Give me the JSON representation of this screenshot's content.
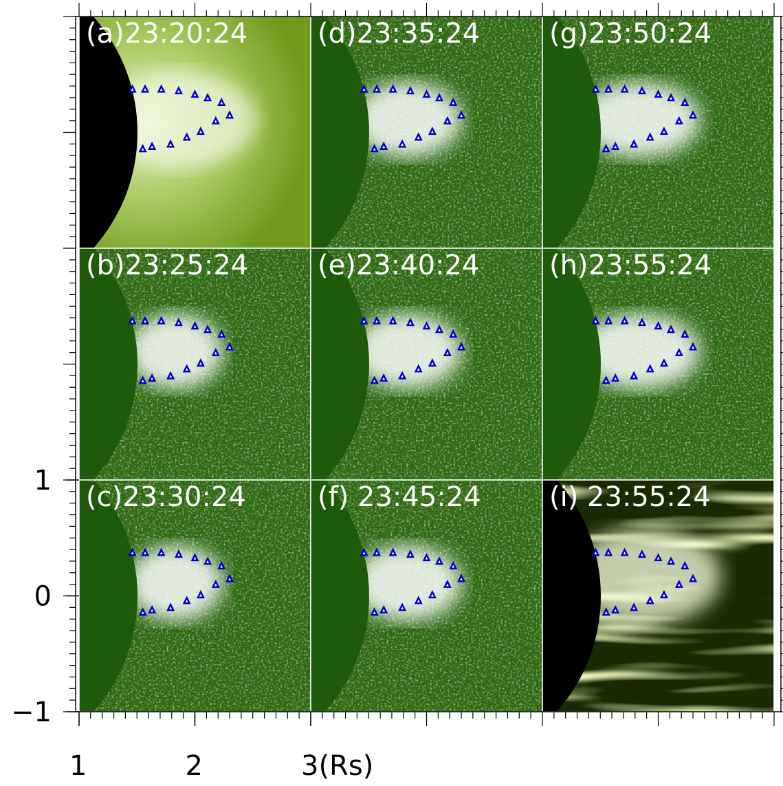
{
  "chart_data": [
    {
      "type": "scatter",
      "title": "(a)23:20:24",
      "style": "direct",
      "color": "#0000cc",
      "xlim": [
        1,
        3
      ],
      "ylim": [
        -1,
        1
      ],
      "x": [
        1.46,
        1.57,
        1.71,
        1.86,
        2.0,
        2.11,
        2.23,
        2.3,
        2.18,
        2.05,
        1.93,
        1.79,
        1.63,
        1.55
      ],
      "y": [
        0.375,
        0.375,
        0.375,
        0.36,
        0.33,
        0.3,
        0.26,
        0.15,
        0.1,
        0.01,
        -0.04,
        -0.1,
        -0.12,
        -0.14
      ]
    },
    {
      "type": "scatter",
      "title": "(b)23:25:24",
      "style": "difference",
      "color": "#0000cc",
      "xlim": [
        1,
        3
      ],
      "ylim": [
        -1,
        1
      ],
      "x": [
        1.46,
        1.57,
        1.71,
        1.86,
        2.0,
        2.11,
        2.23,
        2.3,
        2.18,
        2.05,
        1.93,
        1.79,
        1.63,
        1.55
      ],
      "y": [
        0.375,
        0.375,
        0.375,
        0.36,
        0.33,
        0.3,
        0.26,
        0.15,
        0.1,
        0.01,
        -0.04,
        -0.1,
        -0.12,
        -0.14
      ]
    },
    {
      "type": "scatter",
      "title": "(c)23:30:24",
      "style": "difference",
      "color": "#0000cc",
      "xlim": [
        1,
        3
      ],
      "ylim": [
        -1,
        1
      ],
      "xticks": [
        1,
        2,
        {
          "value": 3,
          "label": "3(Rs)"
        }
      ],
      "yticks": [
        {
          "value": -1,
          "label": "−1"
        },
        0,
        1
      ],
      "x": [
        1.46,
        1.57,
        1.71,
        1.86,
        2.0,
        2.11,
        2.23,
        2.3,
        2.18,
        2.05,
        1.93,
        1.79,
        1.63,
        1.55
      ],
      "y": [
        0.375,
        0.375,
        0.375,
        0.36,
        0.33,
        0.3,
        0.26,
        0.15,
        0.1,
        0.01,
        -0.04,
        -0.1,
        -0.12,
        -0.14
      ]
    },
    {
      "type": "scatter",
      "title": "(d)23:35:24",
      "style": "difference",
      "color": "#0000cc",
      "xlim": [
        1,
        3
      ],
      "ylim": [
        -1,
        1
      ],
      "x": [
        1.46,
        1.57,
        1.71,
        1.86,
        2.0,
        2.11,
        2.23,
        2.3,
        2.18,
        2.05,
        1.93,
        1.79,
        1.63,
        1.55
      ],
      "y": [
        0.375,
        0.375,
        0.375,
        0.36,
        0.33,
        0.3,
        0.26,
        0.15,
        0.1,
        0.01,
        -0.04,
        -0.1,
        -0.12,
        -0.14
      ]
    },
    {
      "type": "scatter",
      "title": "(e)23:40:24",
      "style": "difference",
      "color": "#0000cc",
      "xlim": [
        1,
        3
      ],
      "ylim": [
        -1,
        1
      ],
      "x": [
        1.46,
        1.57,
        1.71,
        1.86,
        2.0,
        2.11,
        2.23,
        2.3,
        2.18,
        2.05,
        1.93,
        1.79,
        1.63,
        1.55
      ],
      "y": [
        0.375,
        0.375,
        0.375,
        0.36,
        0.33,
        0.3,
        0.26,
        0.15,
        0.1,
        0.01,
        -0.04,
        -0.1,
        -0.12,
        -0.14
      ]
    },
    {
      "type": "scatter",
      "title": "(f) 23:45:24",
      "style": "difference",
      "color": "#0000cc",
      "xlim": [
        1,
        3
      ],
      "ylim": [
        -1,
        1
      ],
      "x": [
        1.46,
        1.57,
        1.71,
        1.86,
        2.0,
        2.11,
        2.23,
        2.3,
        2.18,
        2.05,
        1.93,
        1.79,
        1.63,
        1.55
      ],
      "y": [
        0.375,
        0.375,
        0.375,
        0.36,
        0.33,
        0.3,
        0.26,
        0.15,
        0.1,
        0.01,
        -0.04,
        -0.1,
        -0.12,
        -0.14
      ]
    },
    {
      "type": "scatter",
      "title": "(g)23:50:24",
      "style": "difference",
      "color": "#0000cc",
      "xlim": [
        1,
        3
      ],
      "ylim": [
        -1,
        1
      ],
      "x": [
        1.46,
        1.57,
        1.71,
        1.86,
        2.0,
        2.11,
        2.23,
        2.3,
        2.18,
        2.05,
        1.93,
        1.79,
        1.63,
        1.55
      ],
      "y": [
        0.375,
        0.375,
        0.375,
        0.36,
        0.33,
        0.3,
        0.26,
        0.15,
        0.1,
        0.01,
        -0.04,
        -0.1,
        -0.12,
        -0.14
      ]
    },
    {
      "type": "scatter",
      "title": "(h)23:55:24",
      "style": "difference",
      "color": "#0000cc",
      "xlim": [
        1,
        3
      ],
      "ylim": [
        -1,
        1
      ],
      "x": [
        1.46,
        1.57,
        1.71,
        1.86,
        2.0,
        2.11,
        2.23,
        2.3,
        2.18,
        2.05,
        1.93,
        1.79,
        1.63,
        1.55
      ],
      "y": [
        0.375,
        0.375,
        0.375,
        0.36,
        0.33,
        0.3,
        0.26,
        0.15,
        0.1,
        0.01,
        -0.04,
        -0.1,
        -0.12,
        -0.14
      ]
    },
    {
      "type": "scatter",
      "title": "(i) 23:55:24",
      "style": "enhanced",
      "color": "#0000cc",
      "xlim": [
        1,
        3
      ],
      "ylim": [
        -1,
        1
      ],
      "x": [
        1.46,
        1.57,
        1.71,
        1.86,
        2.0,
        2.11,
        2.23,
        2.3,
        2.18,
        2.05,
        1.93,
        1.79,
        1.63,
        1.55
      ],
      "y": [
        0.375,
        0.375,
        0.375,
        0.36,
        0.33,
        0.3,
        0.26,
        0.15,
        0.1,
        0.01,
        -0.04,
        -0.1,
        -0.12,
        -0.14
      ]
    }
  ]
}
